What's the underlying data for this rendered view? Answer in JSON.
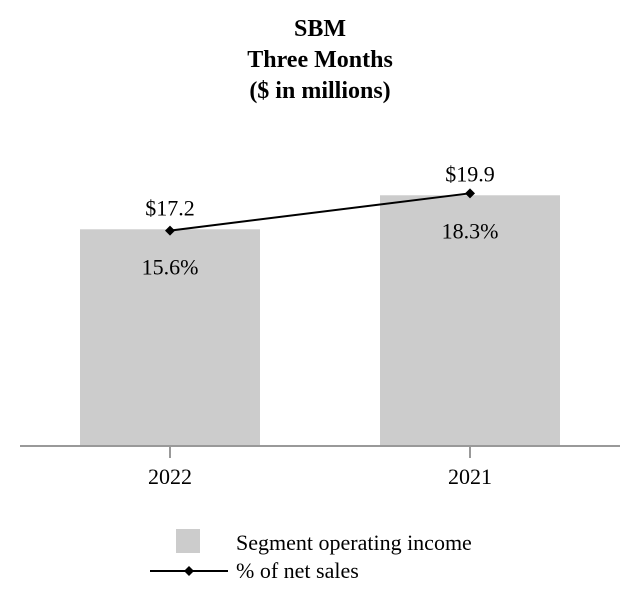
{
  "chart_data": {
    "type": "bar",
    "title": [
      "SBM",
      "Three Months",
      "($ in millions)"
    ],
    "categories": [
      "2022",
      "2021"
    ],
    "series": [
      {
        "name": "Segment operating income",
        "kind": "bar",
        "values": [
          17.2,
          19.9
        ],
        "labels": [
          "$17.2",
          "$19.9"
        ],
        "color": "#cccccc"
      },
      {
        "name": "% of net sales",
        "kind": "line",
        "values": [
          15.6,
          18.3
        ],
        "labels": [
          "15.6%",
          "18.3%"
        ],
        "color": "#000000",
        "marker": "diamond"
      }
    ],
    "bar_axis": {
      "min": 0,
      "max": 35.4
    },
    "line_axis": {
      "min": 0,
      "max": 32.3
    },
    "grid": false,
    "legend_position": "bottom-center"
  }
}
